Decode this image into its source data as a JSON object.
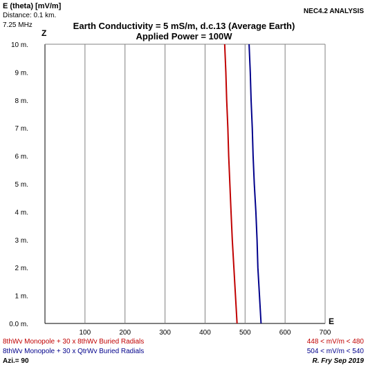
{
  "header": {
    "y_label": "E (theta) [mV/m]",
    "distance": "Distance: 0.1 km.",
    "frequency": "7.25 MHz",
    "analysis": "NEC4.2 ANALYSIS",
    "title_line1": "Earth Conductivity = 5 mS/m, d.c.13 (Average Earth)",
    "title_line2": "Applied Power = 100W"
  },
  "axes": {
    "z_label": "Z",
    "e_label": "E"
  },
  "footer": {
    "series1_label": "8thWv Monopole + 30 x 8thWv Buried Radials",
    "series1_range": "448 < mV/m < 480",
    "series2_label": "8thWv Monopole + 30 x QtrWv Buried Radials",
    "series2_range": "504 < mV/m < 540",
    "azimuth": "Azi.= 90",
    "credit": "R. Fry Sep 2019"
  },
  "colors": {
    "series1": "#c00000",
    "series2": "#00008b",
    "grid": "#808080"
  },
  "chart_data": {
    "type": "line",
    "xlabel": "E",
    "ylabel": "Z",
    "xlim": [
      0,
      700
    ],
    "ylim": [
      0,
      10
    ],
    "x_ticks": [
      "100",
      "200",
      "300",
      "400",
      "500",
      "600",
      "700"
    ],
    "y_ticks": [
      "0.0 m.",
      "1 m.",
      "2 m.",
      "3 m.",
      "4 m.",
      "5 m.",
      "6 m.",
      "7 m.",
      "8 m.",
      "9 m.",
      "10 m."
    ],
    "grid": true,
    "series": [
      {
        "name": "8thWv Monopole + 30 x 8thWv Buried Radials",
        "color": "#c00000",
        "points": [
          [
            480,
            0
          ],
          [
            476,
            1
          ],
          [
            472,
            2
          ],
          [
            468,
            3
          ],
          [
            465,
            4
          ],
          [
            462,
            5
          ],
          [
            459,
            6
          ],
          [
            457,
            7
          ],
          [
            454,
            8
          ],
          [
            452,
            9
          ],
          [
            449,
            10
          ]
        ]
      },
      {
        "name": "8thWv Monopole + 30 x QtrWv Buried Radials",
        "color": "#00008b",
        "points": [
          [
            540,
            0
          ],
          [
            536,
            1
          ],
          [
            532,
            2
          ],
          [
            530,
            3
          ],
          [
            527,
            4
          ],
          [
            523,
            5
          ],
          [
            520,
            6
          ],
          [
            518,
            7
          ],
          [
            515,
            8
          ],
          [
            513,
            9
          ],
          [
            510,
            10
          ]
        ]
      }
    ]
  }
}
